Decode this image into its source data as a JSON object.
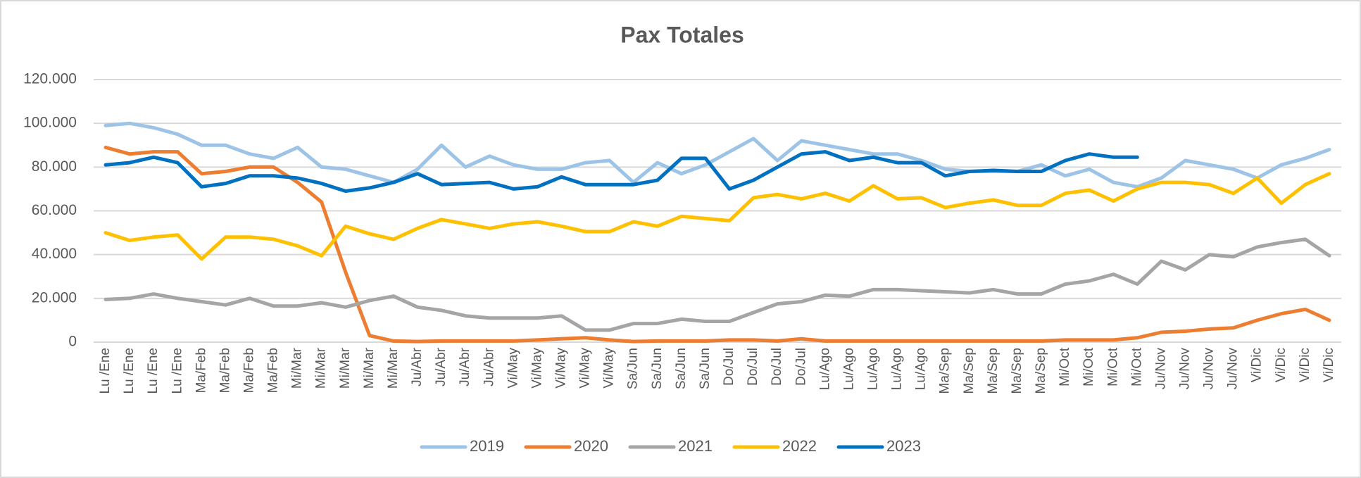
{
  "chart_data": {
    "type": "line",
    "title": "Pax Totales",
    "categories": [
      "Lu /Ene",
      "Lu /Ene",
      "Lu /Ene",
      "Lu /Ene",
      "Ma/Feb",
      "Ma/Feb",
      "Ma/Feb",
      "Ma/Feb",
      "Mi/Mar",
      "Mi/Mar",
      "Mi/Mar",
      "Mi/Mar",
      "Mi/Mar",
      "Ju/Abr",
      "Ju/Abr",
      "Ju/Abr",
      "Ju/Abr",
      "Vi/May",
      "Vi/May",
      "Vi/May",
      "Vi/May",
      "Vi/May",
      "Sa/Jun",
      "Sa/Jun",
      "Sa/Jun",
      "Sa/Jun",
      "Do/Jul",
      "Do/Jul",
      "Do/Jul",
      "Do/Jul",
      "Lu/Ago",
      "Lu/Ago",
      "Lu/Ago",
      "Lu/Ago",
      "Lu/Ago",
      "Ma/Sep",
      "Ma/Sep",
      "Ma/Sep",
      "Ma/Sep",
      "Ma/Sep",
      "Mi/Oct",
      "Mi/Oct",
      "Mi/Oct",
      "Mi/Oct",
      "Ju/Nov",
      "Ju/Nov",
      "Ju/Nov",
      "Ju/Nov",
      "Vi/Dic",
      "Vi/Dic",
      "Vi/Dic",
      "Vi/Dic"
    ],
    "series": [
      {
        "name": "2019",
        "color": "#9dc3e6",
        "values": [
          99000,
          100000,
          98000,
          95000,
          90000,
          90000,
          86000,
          84000,
          89000,
          80000,
          79000,
          76000,
          73000,
          79000,
          90000,
          80000,
          85000,
          81000,
          79000,
          79000,
          82000,
          83000,
          73000,
          82000,
          77000,
          81000,
          87000,
          93000,
          83000,
          92000,
          90000,
          88000,
          86000,
          86000,
          83000,
          79000,
          78000,
          78000,
          78000,
          81000,
          76000,
          79000,
          73000,
          71000,
          75000,
          83000,
          81000,
          79000,
          75000,
          81000,
          84000,
          88000
        ]
      },
      {
        "name": "2020",
        "color": "#ed7d31",
        "values": [
          89000,
          86000,
          87000,
          87000,
          77000,
          78000,
          80000,
          80000,
          73000,
          64000,
          32000,
          3000,
          500,
          300,
          500,
          500,
          500,
          500,
          1000,
          1500,
          2000,
          1000,
          300,
          500,
          500,
          500,
          1000,
          1000,
          500,
          1500,
          500,
          500,
          500,
          500,
          500,
          500,
          500,
          500,
          500,
          500,
          1000,
          1000,
          1000,
          2000,
          4500,
          5000,
          6000,
          6500,
          10000,
          13000,
          15000,
          10000
        ]
      },
      {
        "name": "2021",
        "color": "#a5a5a5",
        "values": [
          19500,
          20000,
          22000,
          20000,
          18500,
          17000,
          20000,
          16500,
          16500,
          18000,
          16000,
          19000,
          21000,
          16000,
          14500,
          12000,
          11000,
          11000,
          11000,
          12000,
          5500,
          5500,
          8500,
          8500,
          10500,
          9500,
          9500,
          13500,
          17500,
          18500,
          21500,
          21000,
          24000,
          24000,
          23500,
          23000,
          22500,
          24000,
          22000,
          22000,
          26500,
          28000,
          31000,
          26500,
          37000,
          33000,
          40000,
          39000,
          43500,
          45500,
          47000,
          39500
        ]
      },
      {
        "name": "2022",
        "color": "#ffc000",
        "values": [
          50000,
          46500,
          48000,
          49000,
          38000,
          48000,
          48000,
          47000,
          44000,
          39500,
          53000,
          49500,
          47000,
          52000,
          56000,
          54000,
          52000,
          54000,
          55000,
          53000,
          50500,
          50500,
          55000,
          53000,
          57500,
          56500,
          55500,
          66000,
          67500,
          65500,
          68000,
          64500,
          71500,
          65500,
          66000,
          61500,
          63500,
          65000,
          62500,
          62500,
          68000,
          69500,
          64500,
          70000,
          73000,
          73000,
          72000,
          68000,
          75000,
          63500,
          72000,
          77000
        ]
      },
      {
        "name": "2023",
        "color": "#0070c0",
        "values": [
          81000,
          82000,
          84500,
          82000,
          71000,
          72500,
          76000,
          76000,
          75000,
          72500,
          69000,
          70500,
          73000,
          77000,
          72000,
          72500,
          73000,
          70000,
          71000,
          75500,
          72000,
          72000,
          72000,
          74000,
          84000,
          84000,
          70000,
          74000,
          80000,
          86000,
          87000,
          83000,
          84500,
          82000,
          82000,
          76000,
          78000,
          78500,
          78000,
          78000,
          83000,
          86000,
          84500,
          84500,
          null,
          null,
          null,
          null,
          null,
          null,
          null,
          null
        ]
      }
    ],
    "ylim": [
      0,
      120000
    ],
    "yticks": [
      0,
      {
        "value": 20000,
        "label": "20.000"
      },
      {
        "value": 40000,
        "label": "40.000"
      },
      {
        "value": 60000,
        "label": "60.000"
      },
      {
        "value": 80000,
        "label": "80.000"
      },
      {
        "value": 100000,
        "label": "100.000"
      },
      {
        "value": 120000,
        "label": "120.000"
      }
    ],
    "grid": true,
    "legend": "bottom"
  }
}
